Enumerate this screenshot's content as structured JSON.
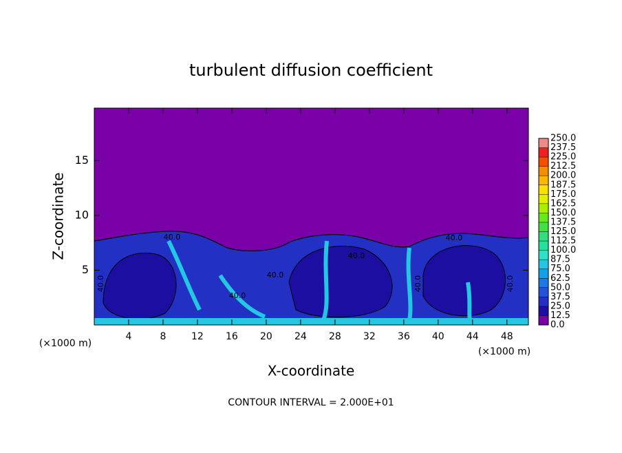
{
  "chart_data": {
    "type": "contour",
    "title": "turbulent diffusion coefficient",
    "xlabel": "X-coordinate",
    "ylabel": "Z-coordinate",
    "x_unit_left": "(×1000 m)",
    "x_unit_right": "(×1000 m)",
    "footer": "CONTOUR INTERVAL = 2.000E+01",
    "xlim": [
      0,
      50.5
    ],
    "ylim": [
      0,
      19.8
    ],
    "xticks": [
      4,
      8,
      12,
      16,
      20,
      24,
      28,
      32,
      36,
      40,
      44,
      48
    ],
    "yticks": [
      5,
      10,
      15
    ],
    "contour_labels": [
      "40.0",
      "40.0",
      "40.0",
      "40.0",
      "40.0",
      "40.0",
      "40.0",
      "40.0"
    ],
    "colorbar": {
      "levels": [
        {
          "value": 0,
          "label": "0.0"
        },
        {
          "value": 12.5,
          "label": "12.5"
        },
        {
          "value": 25,
          "label": "25.0"
        },
        {
          "value": 37.5,
          "label": "37.5"
        },
        {
          "value": 50,
          "label": "50.0"
        },
        {
          "value": 62.5,
          "label": "62.5"
        },
        {
          "value": 75,
          "label": "75.0"
        },
        {
          "value": 87.5,
          "label": "87.5"
        },
        {
          "value": 100,
          "label": "100.0"
        },
        {
          "value": 112.5,
          "label": "112.5"
        },
        {
          "value": 125,
          "label": "125.0"
        },
        {
          "value": 137.5,
          "label": "137.5"
        },
        {
          "value": 150,
          "label": "150.0"
        },
        {
          "value": 162.5,
          "label": "162.5"
        },
        {
          "value": 175,
          "label": "175.0"
        },
        {
          "value": 187.5,
          "label": "187.5"
        },
        {
          "value": 200,
          "label": "200.0"
        },
        {
          "value": 212.5,
          "label": "212.5"
        },
        {
          "value": 225,
          "label": "225.0"
        },
        {
          "value": 237.5,
          "label": "237.5"
        },
        {
          "value": 250,
          "label": "250.0"
        }
      ],
      "colors": [
        "#7a00a8",
        "#1c0ea0",
        "#2230c4",
        "#2452d8",
        "#1e78e2",
        "#12a0ea",
        "#22c8e2",
        "#30e0c4",
        "#22e0a0",
        "#30e07c",
        "#44e040",
        "#66e81e",
        "#a8f000",
        "#e0f000",
        "#f8e000",
        "#f8b800",
        "#f88c00",
        "#f05000",
        "#f02020",
        "#f08888"
      ]
    }
  }
}
